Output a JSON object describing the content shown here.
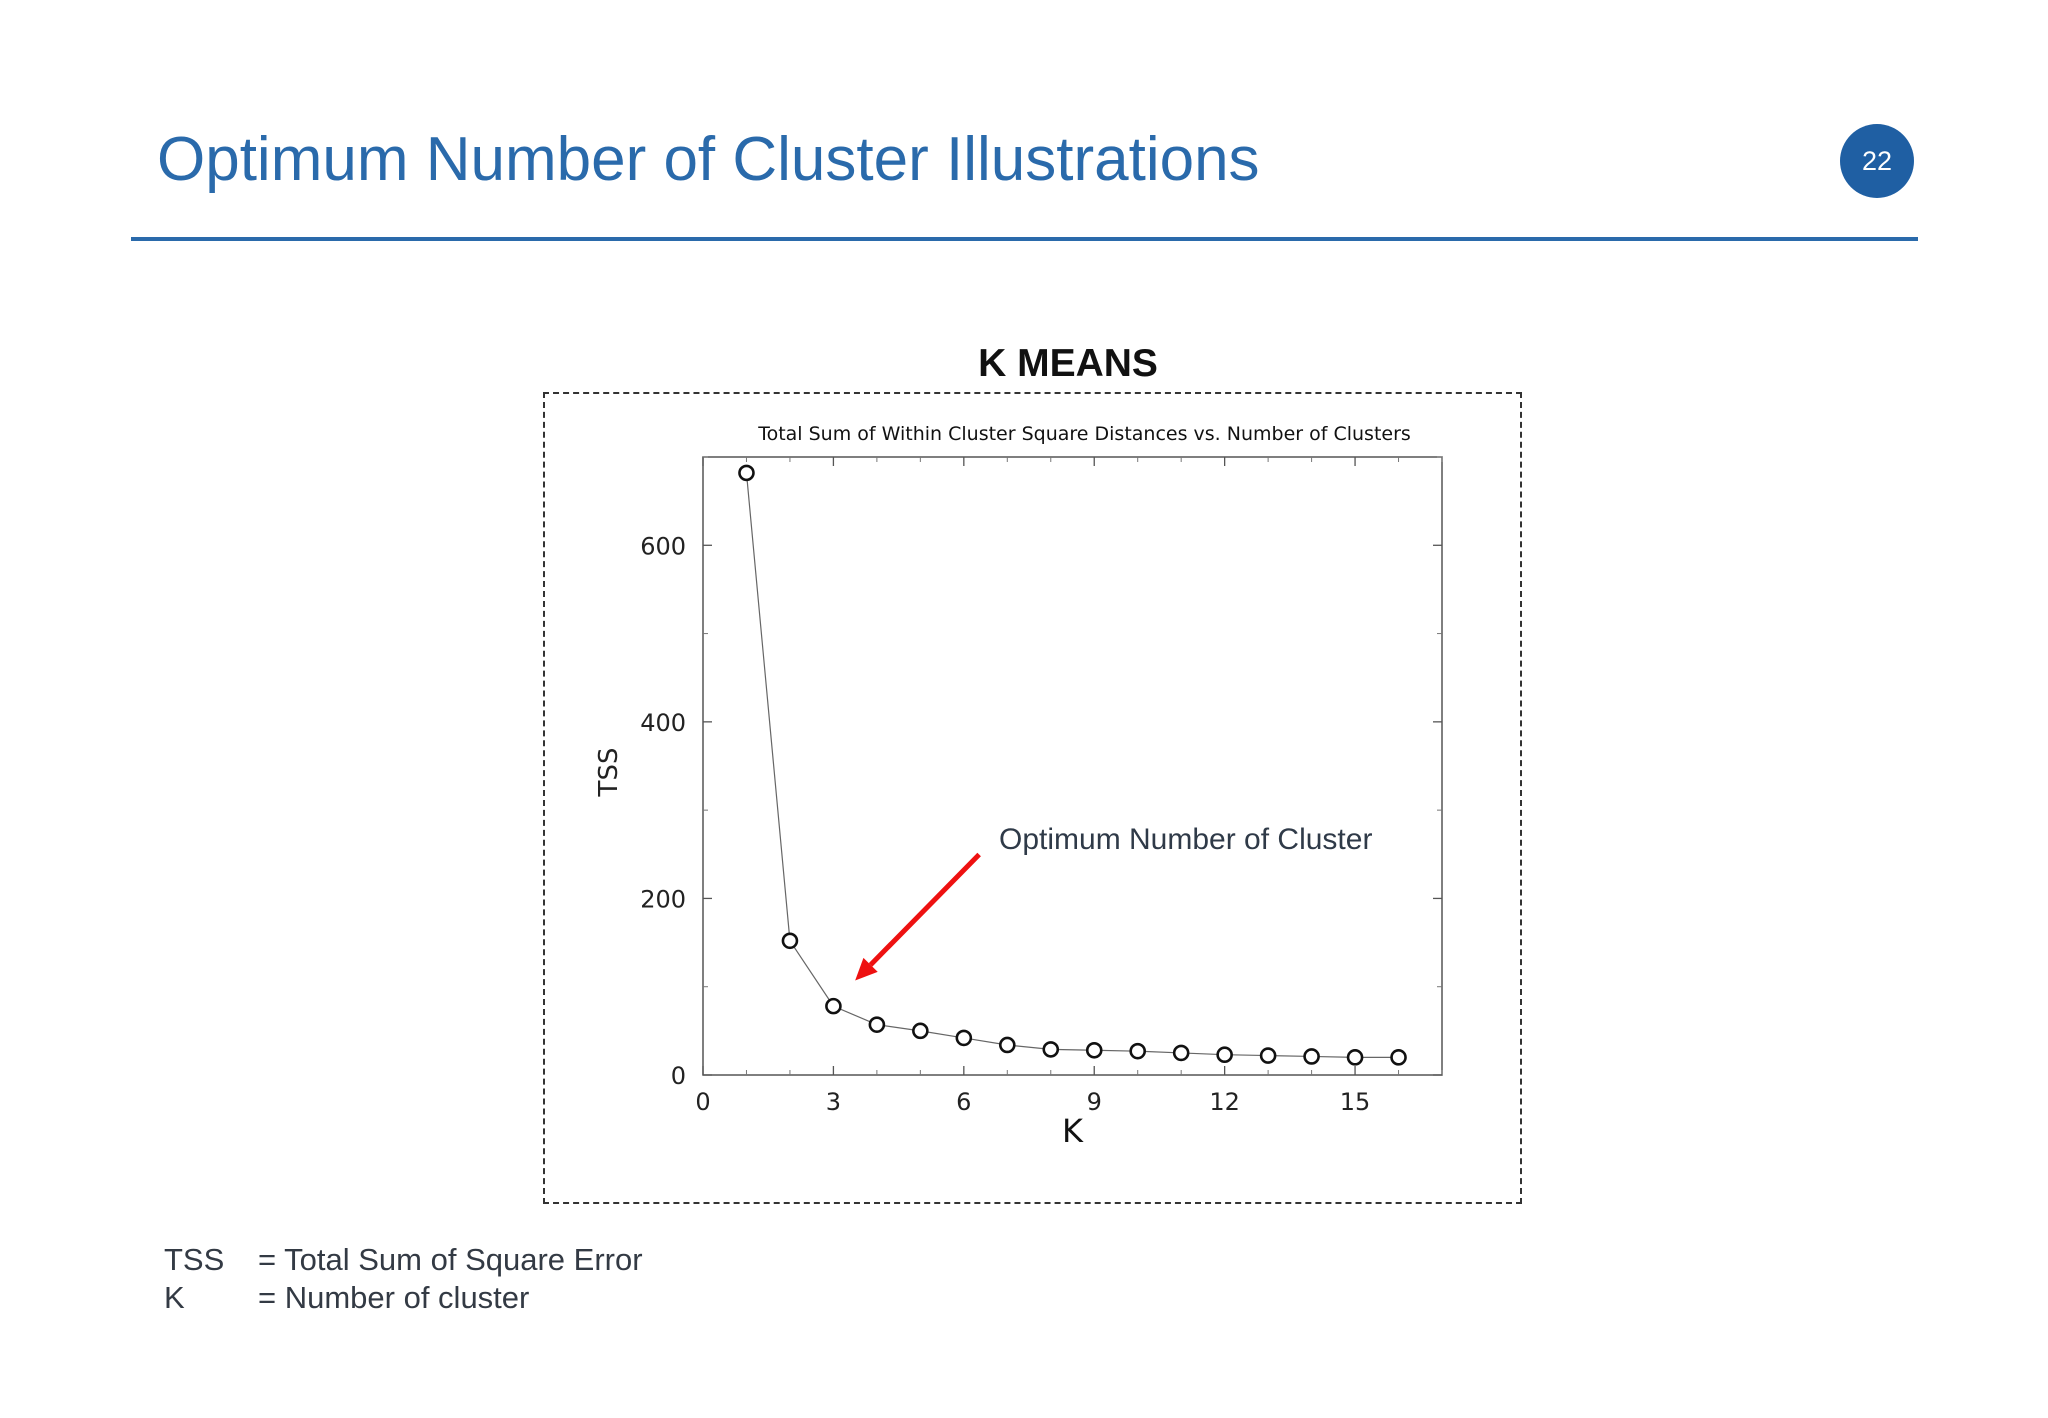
{
  "slide": {
    "title": "Optimum Number of Cluster Illustrations",
    "page_number": "22",
    "accent_color": "#2a6aab",
    "badge_color": "#1f5fa3"
  },
  "chart_heading": "K MEANS",
  "chart_data": {
    "type": "line",
    "title": "Total Sum of Within Cluster Square Distances vs. Number of Clusters",
    "xlabel": "K",
    "ylabel": "TSS",
    "xlim": [
      0,
      17
    ],
    "ylim": [
      0,
      700
    ],
    "xticks": [
      0,
      3,
      6,
      9,
      12,
      15
    ],
    "yticks": [
      0,
      200,
      400,
      600
    ],
    "grid": false,
    "marker": "open-circle",
    "series": [
      {
        "x": [
          1,
          2,
          3,
          4,
          5,
          6,
          7,
          8,
          9,
          10,
          11,
          12,
          13,
          14,
          15,
          16
        ],
        "y": [
          682,
          152,
          78,
          57,
          50,
          42,
          34,
          29,
          28,
          27,
          25,
          23,
          22,
          21,
          20,
          20
        ]
      }
    ],
    "annotation": {
      "text": "Optimum Number of Cluster",
      "points_to": {
        "x": 3.5,
        "y": 107
      },
      "arrow_color": "#ee1111"
    }
  },
  "definitions": [
    {
      "term": "TSS",
      "definition": "= Total Sum of Square Error"
    },
    {
      "term": "K",
      "definition": "= Number of cluster"
    }
  ]
}
